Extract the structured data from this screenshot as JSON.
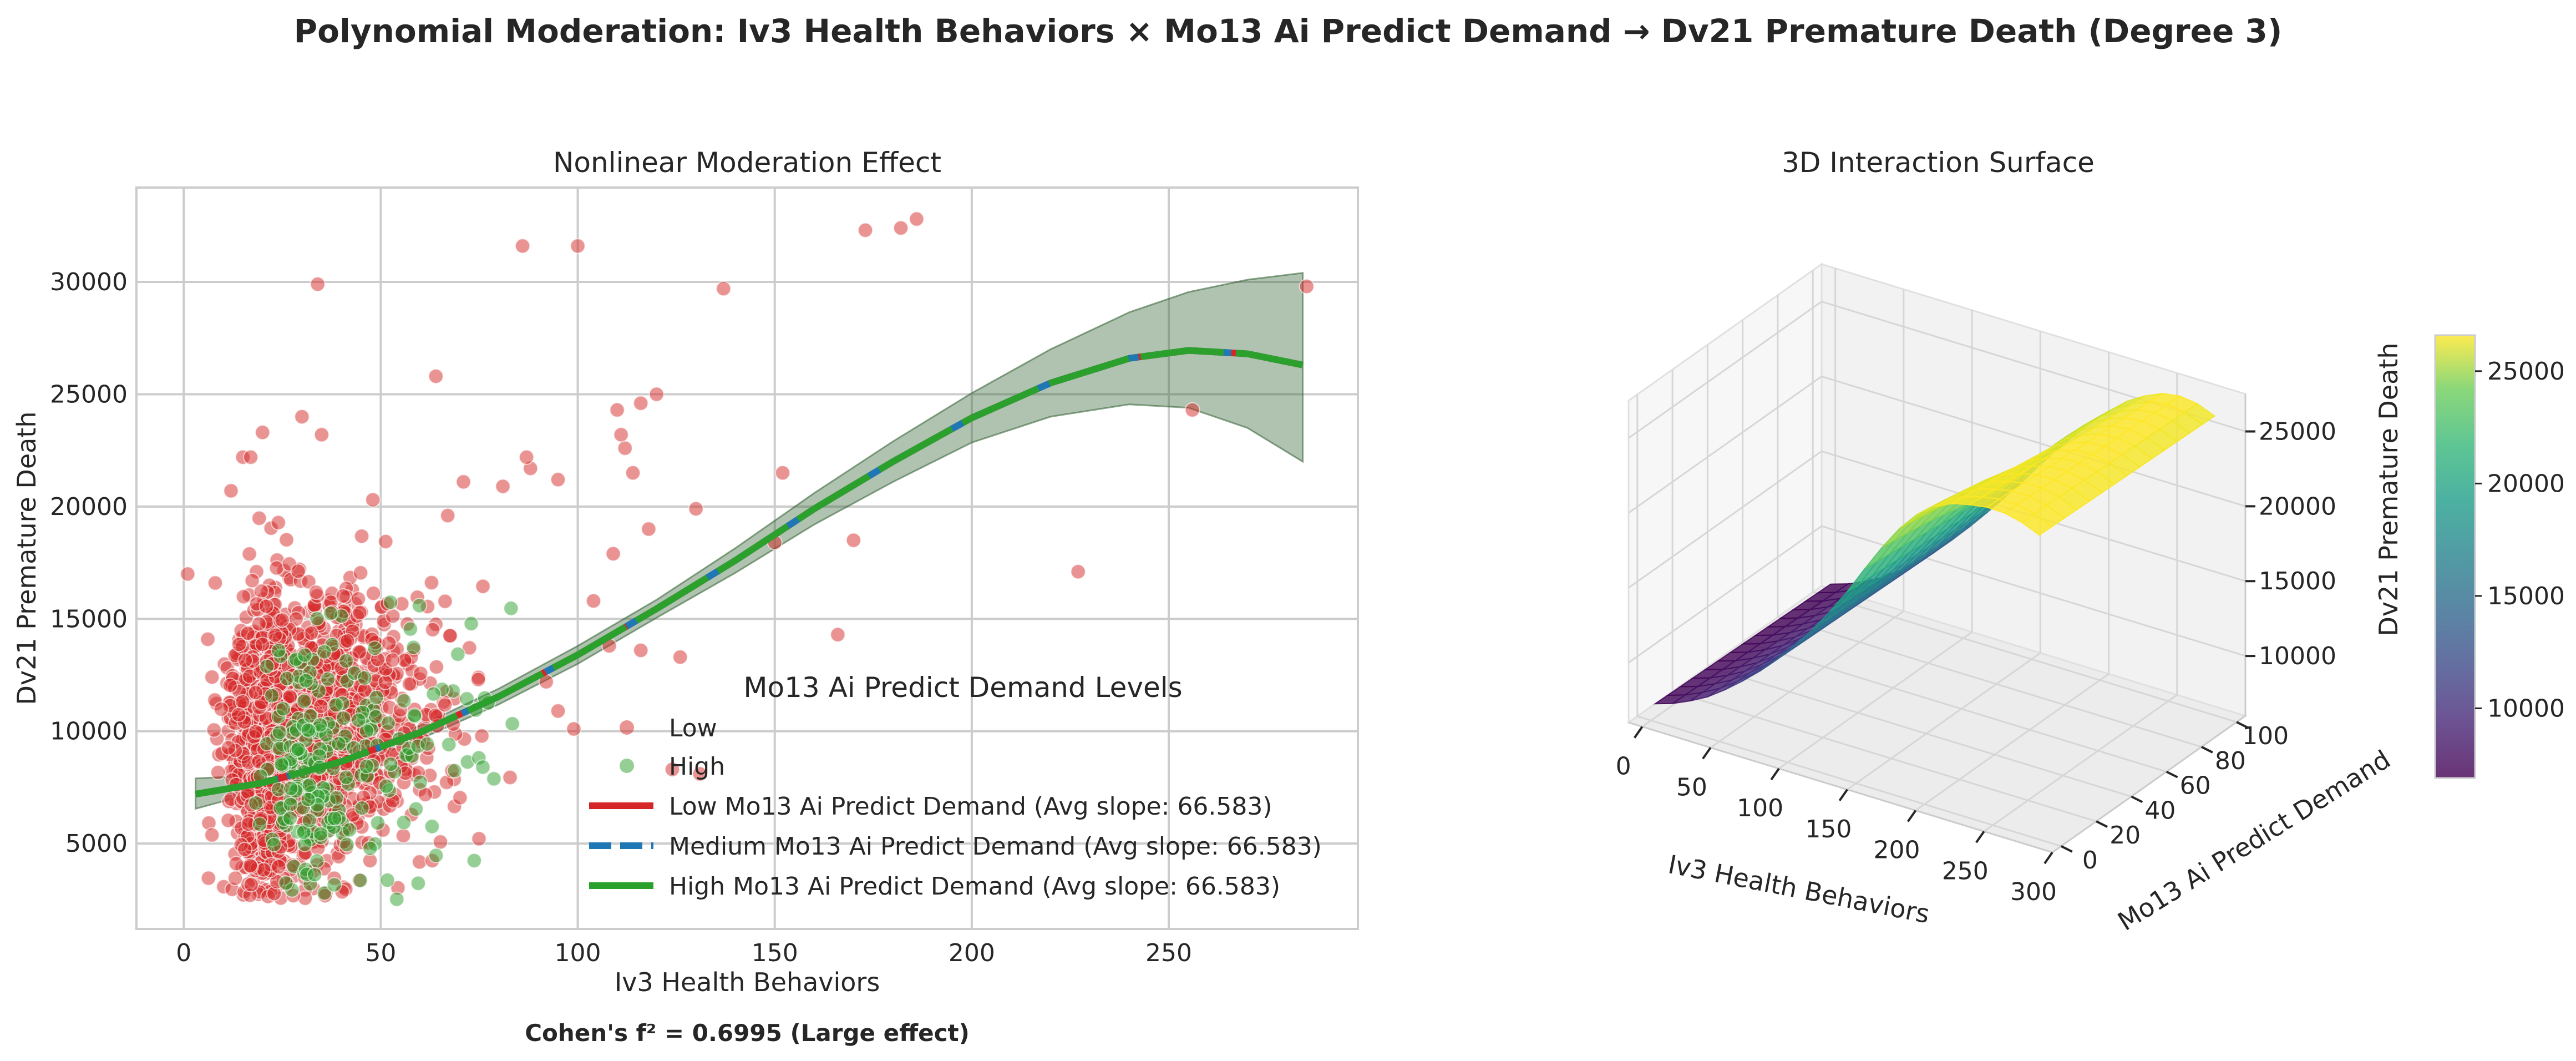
{
  "figure": {
    "title": "Polynomial Moderation: Iv3 Health Behaviors × Mo13 Ai Predict Demand → Dv21 Premature Death (Degree 3)",
    "note": "Cohen's f² = 0.6995 (Large effect)"
  },
  "colors": {
    "low": "#d62728",
    "medium": "#1f77b4",
    "high": "#2ca02c",
    "band": "#2f5f2f",
    "grid": "#cccccc",
    "pane": "#f2f2f2"
  },
  "chart_data": [
    {
      "type": "scatter",
      "title": "Nonlinear Moderation Effect",
      "xlabel": "Iv3 Health Behaviors",
      "ylabel": "Dv21 Premature Death",
      "xlim": [
        -12,
        298
      ],
      "ylim": [
        1200,
        34200
      ],
      "xticks": [
        0,
        50,
        100,
        150,
        200,
        250
      ],
      "yticks": [
        5000,
        10000,
        15000,
        20000,
        25000,
        30000
      ],
      "grid": true,
      "legend": {
        "title": "Mo13 Ai Predict Demand Levels",
        "placement": "lower-right",
        "entries": [
          "Low",
          "High",
          "Low Mo13 Ai Predict Demand (Avg slope: 66.583)",
          "Medium Mo13 Ai Predict Demand (Avg slope: 66.583)",
          "High Mo13 Ai Predict Demand (Avg slope: 66.583)"
        ]
      },
      "scatter_groups": [
        {
          "name": "Low",
          "color": "#d62728",
          "cluster": {
            "x_center": 25,
            "x_spread": 14,
            "y_center": 9500,
            "y_spread": 3000,
            "count": 1800
          }
        },
        {
          "name": "High",
          "color": "#2ca02c",
          "cluster": {
            "x_center": 35,
            "x_spread": 16,
            "y_center": 8500,
            "y_spread": 2800,
            "count": 220
          }
        }
      ],
      "outliers": [
        {
          "x": 34,
          "y": 29900
        },
        {
          "x": 64,
          "y": 25800
        },
        {
          "x": 86,
          "y": 31600
        },
        {
          "x": 100,
          "y": 31600
        },
        {
          "x": 137,
          "y": 29700
        },
        {
          "x": 173,
          "y": 32300
        },
        {
          "x": 182,
          "y": 32400
        },
        {
          "x": 186,
          "y": 32800
        },
        {
          "x": 285,
          "y": 29800
        },
        {
          "x": 256,
          "y": 24300
        },
        {
          "x": 227,
          "y": 17100
        },
        {
          "x": 166,
          "y": 14300
        },
        {
          "x": 170,
          "y": 18500
        },
        {
          "x": 150,
          "y": 18400
        },
        {
          "x": 152,
          "y": 21500
        },
        {
          "x": 120,
          "y": 25000
        },
        {
          "x": 116,
          "y": 24600
        },
        {
          "x": 110,
          "y": 24300
        },
        {
          "x": 112,
          "y": 22600
        },
        {
          "x": 111,
          "y": 23200
        },
        {
          "x": 88,
          "y": 21700
        },
        {
          "x": 87,
          "y": 22200
        },
        {
          "x": 95,
          "y": 21200
        },
        {
          "x": 114,
          "y": 21500
        },
        {
          "x": 130,
          "y": 19900
        },
        {
          "x": 118,
          "y": 19000
        },
        {
          "x": 109,
          "y": 17900
        },
        {
          "x": 104,
          "y": 15800
        },
        {
          "x": 108,
          "y": 13800
        },
        {
          "x": 116,
          "y": 13600
        },
        {
          "x": 126,
          "y": 13300
        },
        {
          "x": 92,
          "y": 12200
        },
        {
          "x": 95,
          "y": 10900
        },
        {
          "x": 99,
          "y": 10100
        },
        {
          "x": 124,
          "y": 8300
        },
        {
          "x": 131,
          "y": 8100
        },
        {
          "x": 30,
          "y": 24000
        },
        {
          "x": 20,
          "y": 23300
        },
        {
          "x": 15,
          "y": 22200
        },
        {
          "x": 17,
          "y": 22200
        },
        {
          "x": 35,
          "y": 23200
        },
        {
          "x": 48,
          "y": 20300
        },
        {
          "x": 71,
          "y": 21100
        },
        {
          "x": 81,
          "y": 20900
        },
        {
          "x": 67,
          "y": 19600
        },
        {
          "x": 1,
          "y": 17000
        },
        {
          "x": 8,
          "y": 16600
        },
        {
          "x": 12,
          "y": 20700
        }
      ],
      "outlier_color": "#d62728",
      "series": [
        {
          "name": "Low Mo13 Ai Predict Demand (Avg slope: 66.583)",
          "color": "#d62728",
          "style": "solid",
          "x": [
            3,
            20,
            40,
            60,
            80,
            100,
            120,
            140,
            160,
            180,
            200,
            220,
            240,
            255,
            270,
            284
          ],
          "y": [
            7200,
            7700,
            8650,
            9950,
            11550,
            13400,
            15450,
            17600,
            19900,
            22000,
            23950,
            25500,
            26600,
            26950,
            26800,
            26300
          ]
        },
        {
          "name": "Medium Mo13 Ai Predict Demand (Avg slope: 66.583)",
          "color": "#1f77b4",
          "style": "dashed",
          "x": [
            3,
            20,
            40,
            60,
            80,
            100,
            120,
            140,
            160,
            180,
            200,
            220,
            240,
            255,
            270,
            284
          ],
          "y": [
            7200,
            7700,
            8650,
            9950,
            11550,
            13400,
            15450,
            17600,
            19900,
            22000,
            23950,
            25500,
            26600,
            26950,
            26800,
            26300
          ]
        },
        {
          "name": "High Mo13 Ai Predict Demand (Avg slope: 66.583)",
          "color": "#2ca02c",
          "style": "solid",
          "x": [
            3,
            20,
            40,
            60,
            80,
            100,
            120,
            140,
            160,
            180,
            200,
            220,
            240,
            255,
            270,
            284
          ],
          "y": [
            7200,
            7700,
            8650,
            9950,
            11550,
            13400,
            15450,
            17600,
            19900,
            22000,
            23950,
            25500,
            26600,
            26950,
            26800,
            26300
          ]
        }
      ],
      "confidence_band": {
        "x": [
          3,
          20,
          40,
          60,
          80,
          100,
          120,
          140,
          160,
          180,
          200,
          220,
          240,
          255,
          270,
          284
        ],
        "lower": [
          6550,
          7350,
          8300,
          9650,
          11200,
          13000,
          15050,
          17050,
          19200,
          21100,
          22850,
          24000,
          24550,
          24400,
          23500,
          22000
        ],
        "upper": [
          7900,
          8050,
          9000,
          10250,
          11900,
          13800,
          15850,
          18150,
          20600,
          22900,
          25050,
          27000,
          28650,
          29550,
          30100,
          30400
        ]
      }
    },
    {
      "type": "surface",
      "title": "3D Interaction Surface",
      "xlabel": "Iv3 Health Behaviors",
      "ylabel": "Mo13 Ai Predict Demand",
      "zlabel": "Dv21 Premature Death",
      "xlim": [
        -10,
        300
      ],
      "ylim": [
        -5,
        105
      ],
      "zlim": [
        6000,
        27500
      ],
      "xticks": [
        0,
        50,
        100,
        150,
        200,
        250,
        300
      ],
      "yticks": [
        0,
        20,
        40,
        60,
        80,
        100
      ],
      "zticks": [
        10000,
        15000,
        20000,
        25000
      ],
      "x_range": [
        3,
        284
      ],
      "y_range": [
        0,
        100
      ],
      "surface_model": {
        "z_min": 6900,
        "z_max": 26600,
        "description_values": [
          6900,
          13500,
          20600,
          26000,
          24800
        ]
      },
      "colormap": "viridis",
      "colorbar": {
        "min": 6900,
        "max": 26600,
        "ticks": [
          10000,
          15000,
          20000,
          25000
        ]
      }
    }
  ]
}
